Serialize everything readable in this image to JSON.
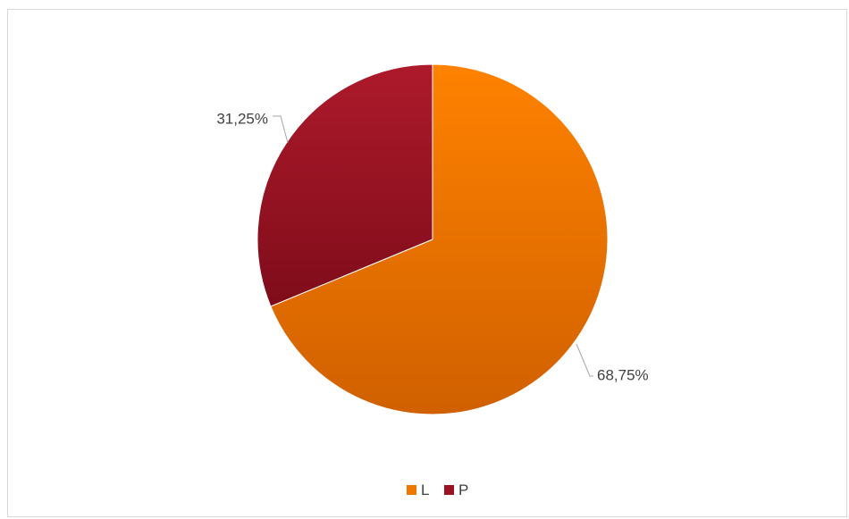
{
  "chart_data": {
    "type": "pie",
    "categories": [
      "L",
      "P"
    ],
    "values": [
      68.75,
      31.25
    ],
    "data_labels": [
      "68,75%",
      "31,25%"
    ],
    "colors": [
      "#f07800",
      "#9b1322"
    ],
    "legend": {
      "placement": "bottom",
      "entries": [
        "L",
        "P"
      ]
    },
    "start_angle_deg": 0,
    "direction": "clockwise"
  }
}
